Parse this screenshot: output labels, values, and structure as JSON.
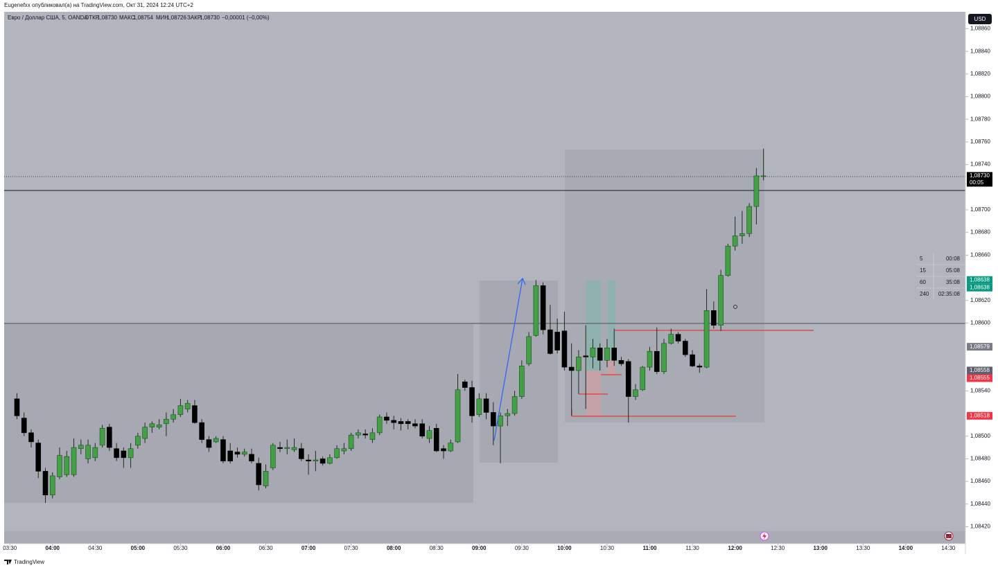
{
  "header": {
    "published": "Eugenefxx опубликовал(а) на TradingView.com, Окт 31, 2024 12:24 UTC+2"
  },
  "legend": {
    "symbol": "Евро / Доллар США, 5, OANDA",
    "ohlc": [
      {
        "label": "ОТКР",
        "value": "1,08730"
      },
      {
        "label": "МАКС",
        "value": "1,08754"
      },
      {
        "label": "МИН",
        "value": "1,08726"
      },
      {
        "label": "ЗАКР",
        "value": "1,08730"
      }
    ],
    "change": "−0,00001 (−0,00%)"
  },
  "currency": "USD",
  "timers": [
    [
      "5",
      "00:08"
    ],
    [
      "15",
      "05:08"
    ],
    [
      "60",
      "35:08"
    ],
    [
      "240",
      "02:35:08"
    ]
  ],
  "footer": "TradingView",
  "chart_data": {
    "type": "candlestick",
    "up_color": "#43a047",
    "down_color": "#000000",
    "xlim": [
      "03:26",
      "14:42"
    ],
    "xticks": [
      "03:30",
      "04:00",
      "04:30",
      "05:00",
      "05:30",
      "06:00",
      "06:30",
      "07:00",
      "07:30",
      "08:00",
      "08:30",
      "09:00",
      "09:30",
      "10:00",
      "10:30",
      "11:00",
      "11:30",
      "12:00",
      "12:30",
      "13:00",
      "13:30",
      "14:00",
      "14:30"
    ],
    "ylim": [
      1.08405,
      1.08875
    ],
    "yticks": [
      {
        "value": 1.0886,
        "label": "1,08860"
      },
      {
        "value": 1.0884,
        "label": "1,08840"
      },
      {
        "value": 1.0882,
        "label": "1,08820"
      },
      {
        "value": 1.088,
        "label": "1,08800"
      },
      {
        "value": 1.0878,
        "label": "1,08780"
      },
      {
        "value": 1.0876,
        "label": "1,08760"
      },
      {
        "value": 1.0874,
        "label": "1,08740"
      },
      {
        "value": 1.087,
        "label": "1,08700"
      },
      {
        "value": 1.0868,
        "label": "1,08680"
      },
      {
        "value": 1.0866,
        "label": "1,08660"
      },
      {
        "value": 1.0862,
        "label": "1,08620"
      },
      {
        "value": 1.086,
        "label": "1,08600"
      },
      {
        "value": 1.0854,
        "label": "1,08540"
      },
      {
        "value": 1.085,
        "label": "1,08500"
      },
      {
        "value": 1.0848,
        "label": "1,08480"
      },
      {
        "value": 1.0846,
        "label": "1,08460"
      },
      {
        "value": 1.0844,
        "label": "1,08440"
      },
      {
        "value": 1.0842,
        "label": "1,08420"
      }
    ],
    "price_labels": [
      {
        "value": 1.0873,
        "label": "1,08730",
        "color": "#000000",
        "countdown": "00:05"
      },
      {
        "value": 1.08638,
        "label": "1,08638",
        "color": "#089981"
      },
      {
        "value": 1.08638,
        "label": "1,08638",
        "color": "#089981"
      },
      {
        "value": 1.08579,
        "label": "1,08579",
        "color": "#787b86"
      },
      {
        "value": 1.08558,
        "label": "1,08558",
        "color": "#5d606b"
      },
      {
        "value": 1.08555,
        "label": "1,08555",
        "color": "#f23645"
      },
      {
        "value": 1.08518,
        "label": "1,08518",
        "color": "#f23645"
      }
    ],
    "x": [
      "03:35",
      "03:40",
      "03:45",
      "03:50",
      "03:55",
      "04:00",
      "04:05",
      "04:10",
      "04:15",
      "04:20",
      "04:25",
      "04:30",
      "04:35",
      "04:40",
      "04:45",
      "04:50",
      "04:55",
      "05:00",
      "05:05",
      "05:10",
      "05:15",
      "05:20",
      "05:25",
      "05:30",
      "05:35",
      "05:40",
      "05:45",
      "05:50",
      "05:55",
      "06:00",
      "06:05",
      "06:10",
      "06:15",
      "06:20",
      "06:25",
      "06:30",
      "06:35",
      "06:40",
      "06:45",
      "06:50",
      "06:55",
      "07:00",
      "07:05",
      "07:10",
      "07:15",
      "07:20",
      "07:25",
      "07:30",
      "07:35",
      "07:40",
      "07:45",
      "07:50",
      "07:55",
      "08:00",
      "08:05",
      "08:10",
      "08:15",
      "08:20",
      "08:25",
      "08:30",
      "08:35",
      "08:40",
      "08:45",
      "08:50",
      "08:55",
      "09:00",
      "09:05",
      "09:10",
      "09:15",
      "09:20",
      "09:25",
      "09:30",
      "09:35",
      "09:40",
      "09:45",
      "09:50",
      "09:55",
      "10:00",
      "10:05",
      "10:10",
      "10:15",
      "10:20",
      "10:25",
      "10:30",
      "10:35",
      "10:40",
      "10:45",
      "10:50",
      "10:55",
      "11:00",
      "11:05",
      "11:10",
      "11:15",
      "11:20",
      "11:25",
      "11:30",
      "11:35",
      "11:40",
      "11:45",
      "11:50",
      "11:55",
      "12:00",
      "12:05",
      "12:10",
      "12:15",
      "12:20"
    ],
    "open": [
      1.08533,
      1.08516,
      1.08503,
      1.08494,
      1.08469,
      1.08448,
      1.08464,
      1.08466,
      1.08466,
      1.08489,
      1.0848,
      1.08481,
      1.08492,
      1.08508,
      1.08489,
      1.08487,
      1.08481,
      1.08492,
      1.08498,
      1.08508,
      1.08508,
      1.08511,
      1.08515,
      1.08519,
      1.08524,
      1.08527,
      1.08512,
      1.08497,
      1.08495,
      1.08497,
      1.08487,
      1.08486,
      1.08484,
      1.08484,
      1.08476,
      1.08456,
      1.08472,
      1.0849,
      1.08489,
      1.08488,
      1.08489,
      1.08479,
      1.08478,
      1.0848,
      1.08476,
      1.08481,
      1.08487,
      1.08489,
      1.08501,
      1.08502,
      1.08497,
      1.08503,
      1.08517,
      1.08514,
      1.08513,
      1.08513,
      1.08511,
      1.08511,
      1.08498,
      1.08507,
      1.08489,
      1.08487,
      1.08495,
      1.08548,
      1.08543,
      1.08519,
      1.08533,
      1.08521,
      1.08509,
      1.08518,
      1.0852,
      1.08535,
      1.08564,
      1.08589,
      1.08633,
      1.08594,
      1.08592,
      1.08593,
      1.08561,
      1.08558,
      1.08571,
      1.0857,
      1.08578,
      1.08567,
      1.08578,
      1.08567,
      1.08566,
      1.08535,
      1.08541,
      1.08561,
      1.08575,
      1.08557,
      1.08582,
      1.0859,
      1.08584,
      1.08572,
      1.08562,
      1.08561,
      1.08611,
      1.08598,
      1.08642,
      1.08668,
      1.08677,
      1.08679,
      1.08703,
      1.0873
    ],
    "high": [
      1.08538,
      1.08521,
      1.08506,
      1.08497,
      1.08472,
      1.08468,
      1.0849,
      1.08487,
      1.08498,
      1.08497,
      1.08497,
      1.08494,
      1.0851,
      1.08511,
      1.08494,
      1.0849,
      1.08494,
      1.08503,
      1.08512,
      1.08513,
      1.08515,
      1.08521,
      1.08524,
      1.08533,
      1.08532,
      1.08532,
      1.08515,
      1.085,
      1.085,
      1.085,
      1.08494,
      1.0849,
      1.08489,
      1.08489,
      1.08481,
      1.08475,
      1.08494,
      1.08495,
      1.08497,
      1.08498,
      1.08494,
      1.08484,
      1.08487,
      1.08482,
      1.08484,
      1.08492,
      1.08494,
      1.08503,
      1.08506,
      1.08506,
      1.08507,
      1.08519,
      1.08521,
      1.08518,
      1.08516,
      1.08515,
      1.08515,
      1.08515,
      1.08509,
      1.08511,
      1.08492,
      1.08497,
      1.08555,
      1.0855,
      1.08549,
      1.08538,
      1.08538,
      1.0853,
      1.08521,
      1.08524,
      1.0854,
      1.08567,
      1.08592,
      1.08638,
      1.08636,
      1.08616,
      1.08604,
      1.0861,
      1.08582,
      1.08576,
      1.08598,
      1.08586,
      1.08582,
      1.08586,
      1.08595,
      1.0857,
      1.08568,
      1.08546,
      1.08562,
      1.08579,
      1.08596,
      1.08586,
      1.08595,
      1.08592,
      1.08586,
      1.08576,
      1.08564,
      1.0863,
      1.08619,
      1.08647,
      1.0867,
      1.08694,
      1.08699,
      1.08706,
      1.08737,
      1.08754
    ],
    "low": [
      1.08515,
      1.085,
      1.0849,
      1.08463,
      1.08441,
      1.08445,
      1.08462,
      1.08464,
      1.08464,
      1.08484,
      1.08476,
      1.08478,
      1.0849,
      1.08487,
      1.08478,
      1.08472,
      1.08472,
      1.08489,
      1.08494,
      1.08503,
      1.08506,
      1.085,
      1.08512,
      1.08517,
      1.08521,
      1.08511,
      1.08494,
      1.08486,
      1.08494,
      1.08476,
      1.08476,
      1.08481,
      1.08482,
      1.08476,
      1.08452,
      1.08454,
      1.0847,
      1.08486,
      1.08484,
      1.08486,
      1.08478,
      1.08466,
      1.08469,
      1.08474,
      1.08475,
      1.0848,
      1.08484,
      1.08487,
      1.08498,
      1.08498,
      1.08494,
      1.08501,
      1.08511,
      1.08506,
      1.08505,
      1.08506,
      1.08507,
      1.08498,
      1.08494,
      1.08486,
      1.0848,
      1.08486,
      1.08494,
      1.0854,
      1.08512,
      1.08517,
      1.08515,
      1.08492,
      1.08476,
      1.08509,
      1.08518,
      1.08533,
      1.08562,
      1.08588,
      1.0859,
      1.08572,
      1.08573,
      1.08558,
      1.08518,
      1.08537,
      1.08524,
      1.0856,
      1.08558,
      1.08561,
      1.08562,
      1.08562,
      1.08512,
      1.08532,
      1.0854,
      1.08558,
      1.08555,
      1.08555,
      1.08581,
      1.08582,
      1.0857,
      1.08561,
      1.08556,
      1.0856,
      1.08595,
      1.08593,
      1.08641,
      1.08664,
      1.0867,
      1.08676,
      1.08687,
      1.08726
    ],
    "close": [
      1.08518,
      1.08503,
      1.08495,
      1.08469,
      1.08448,
      1.08465,
      1.08483,
      1.08482,
      1.0849,
      1.08492,
      1.08492,
      1.0849,
      1.08507,
      1.0849,
      1.08481,
      1.08481,
      1.08489,
      1.085,
      1.08508,
      1.08511,
      1.0851,
      1.08515,
      1.08519,
      1.08527,
      1.08529,
      1.08512,
      1.08497,
      1.0849,
      1.08498,
      1.08478,
      1.08478,
      1.08484,
      1.08486,
      1.08478,
      1.08457,
      1.08469,
      1.08492,
      1.08489,
      1.0849,
      1.0849,
      1.0848,
      1.08478,
      1.08479,
      1.08476,
      1.08481,
      1.08489,
      1.08489,
      1.08501,
      1.08503,
      1.08501,
      1.08503,
      1.08517,
      1.08514,
      1.08512,
      1.08511,
      1.08511,
      1.08509,
      1.085,
      1.08505,
      1.08487,
      1.08487,
      1.08494,
      1.08541,
      1.08543,
      1.08518,
      1.08533,
      1.08521,
      1.08509,
      1.08518,
      1.0852,
      1.08535,
      1.08562,
      1.08588,
      1.08633,
      1.08594,
      1.08573,
      1.08576,
      1.08561,
      1.08558,
      1.0857,
      1.0857,
      1.08578,
      1.08567,
      1.08578,
      1.08567,
      1.08564,
      1.08535,
      1.08541,
      1.08561,
      1.08575,
      1.08557,
      1.08582,
      1.0859,
      1.08584,
      1.08572,
      1.08562,
      1.08561,
      1.08611,
      1.08598,
      1.08642,
      1.08668,
      1.08677,
      1.08679,
      1.08703,
      1.0873,
      1.0873
    ]
  }
}
